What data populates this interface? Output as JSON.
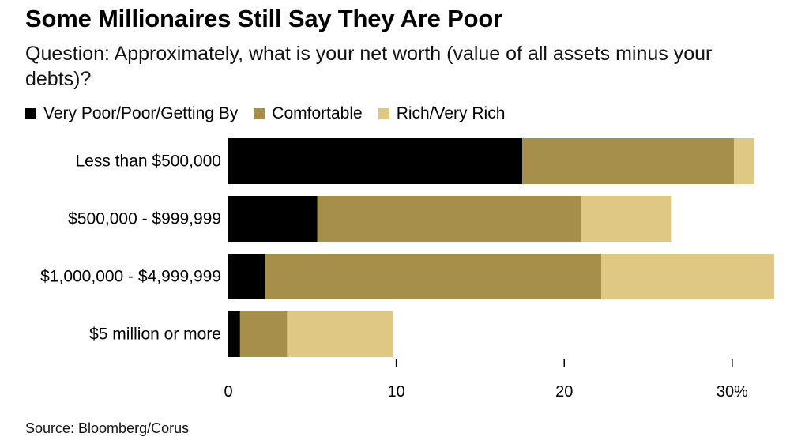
{
  "title": "Some Millionaires Still Say They Are Poor",
  "subtitle": "Question: Approximately, what is your net worth (value of all assets minus your debts)?",
  "legend": [
    {
      "label": "Very Poor/Poor/Getting By",
      "color": "#000000"
    },
    {
      "label": "Comfortable",
      "color": "#a68f4a"
    },
    {
      "label": "Rich/Very Rich",
      "color": "#dfc883"
    }
  ],
  "source": "Source: Bloomberg/Corus",
  "chart_data": {
    "type": "bar",
    "orientation": "horizontal",
    "stacked": true,
    "title": "Some Millionaires Still Say They Are Poor",
    "categories": [
      "Less than $500,000",
      "$500,000 - $999,999",
      "$1,000,000 - $4,999,999",
      "$5 million or more"
    ],
    "series": [
      {
        "name": "Very Poor/Poor/Getting By",
        "color": "#000000",
        "values": [
          17.5,
          5.3,
          2.2,
          0.7
        ]
      },
      {
        "name": "Comfortable",
        "color": "#a68f4a",
        "values": [
          12.6,
          15.7,
          20.0,
          2.8
        ]
      },
      {
        "name": "Rich/Very Rich",
        "color": "#dfc883",
        "values": [
          1.2,
          5.4,
          10.3,
          6.3
        ]
      }
    ],
    "xlim": [
      0,
      32.5
    ],
    "xticks": [
      0,
      10,
      20,
      30
    ],
    "xtick_labels": [
      "0",
      "10",
      "20",
      "30%"
    ],
    "xlabel": "",
    "ylabel": "",
    "legend_position": "top-left"
  }
}
